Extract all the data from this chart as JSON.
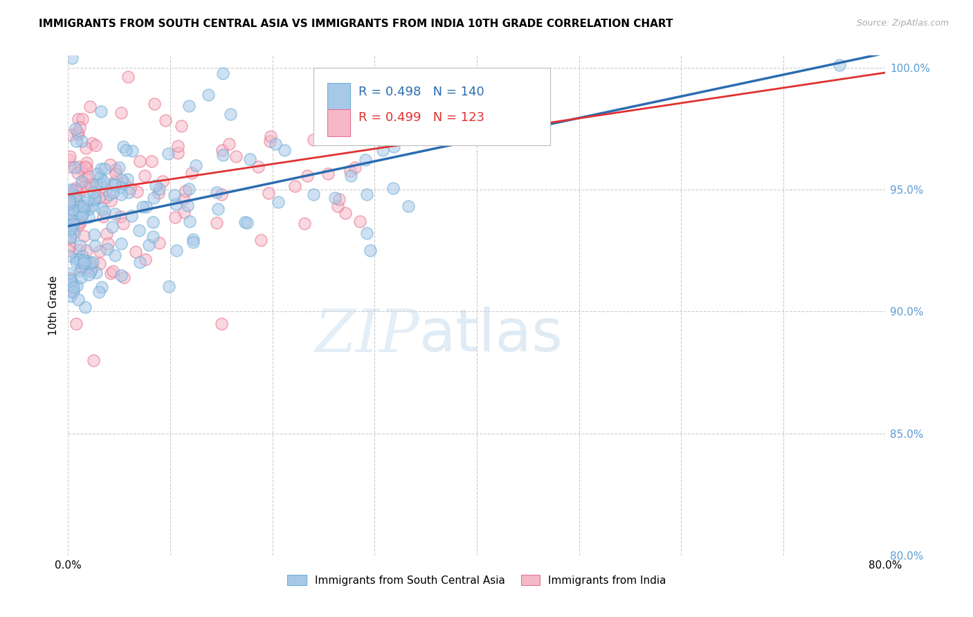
{
  "title": "IMMIGRANTS FROM SOUTH CENTRAL ASIA VS IMMIGRANTS FROM INDIA 10TH GRADE CORRELATION CHART",
  "source": "Source: ZipAtlas.com",
  "ylabel": "10th Grade",
  "series1_label": "Immigrants from South Central Asia",
  "series1_color": "#a8c8e8",
  "series1_edge_color": "#6baed6",
  "series1_R": 0.498,
  "series1_N": 140,
  "series2_label": "Immigrants from India",
  "series2_color": "#f5b8c8",
  "series2_edge_color": "#e87090",
  "series2_R": 0.499,
  "series2_N": 123,
  "xmin": 0.0,
  "xmax": 80.0,
  "ymin": 80.0,
  "ymax": 100.5,
  "yticks": [
    80.0,
    85.0,
    90.0,
    95.0,
    100.0
  ],
  "watermark_zip": "ZIP",
  "watermark_atlas": "atlas",
  "trend1_color": "#2b6cb0",
  "trend2_color": "#e03030",
  "background_color": "#ffffff",
  "title_fontsize": 11,
  "axis_tick_color": "#5b9bd5",
  "seed1": 42,
  "seed2": 77
}
